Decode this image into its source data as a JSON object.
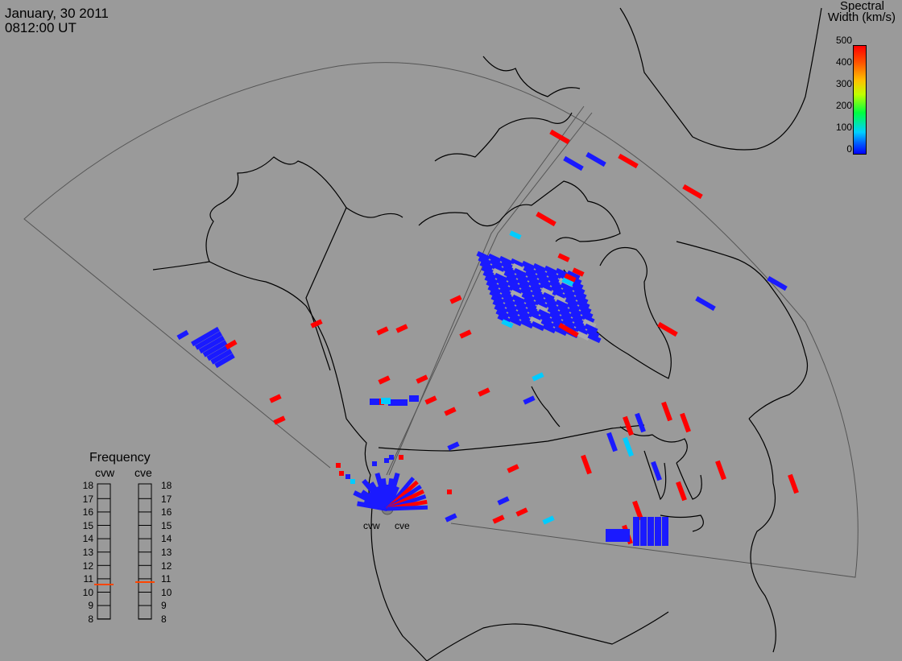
{
  "header": {
    "date": "January, 30 2011",
    "time": "0812:00 UT"
  },
  "colorbar": {
    "title_line1": "Spectral",
    "title_line2": "Width (km/s)",
    "ticks": [
      "500",
      "400",
      "300",
      "200",
      "100",
      "0"
    ]
  },
  "frequency_panel": {
    "title": "Frequency",
    "radars": [
      {
        "name": "cvw",
        "value_mhz": 10.6
      },
      {
        "name": "cve",
        "value_mhz": 10.8
      }
    ],
    "ticks": [
      "18",
      "17",
      "16",
      "15",
      "14",
      "13",
      "12",
      "11",
      "10",
      "9",
      "8"
    ]
  },
  "radar_sites": [
    "cvw",
    "cve"
  ],
  "colors": {
    "background": "#9a9a9a",
    "low_width": "#1a1aff",
    "high_width": "#ff0000",
    "mid_width": "#00ccff",
    "frequency_marker": "#ff4500"
  }
}
